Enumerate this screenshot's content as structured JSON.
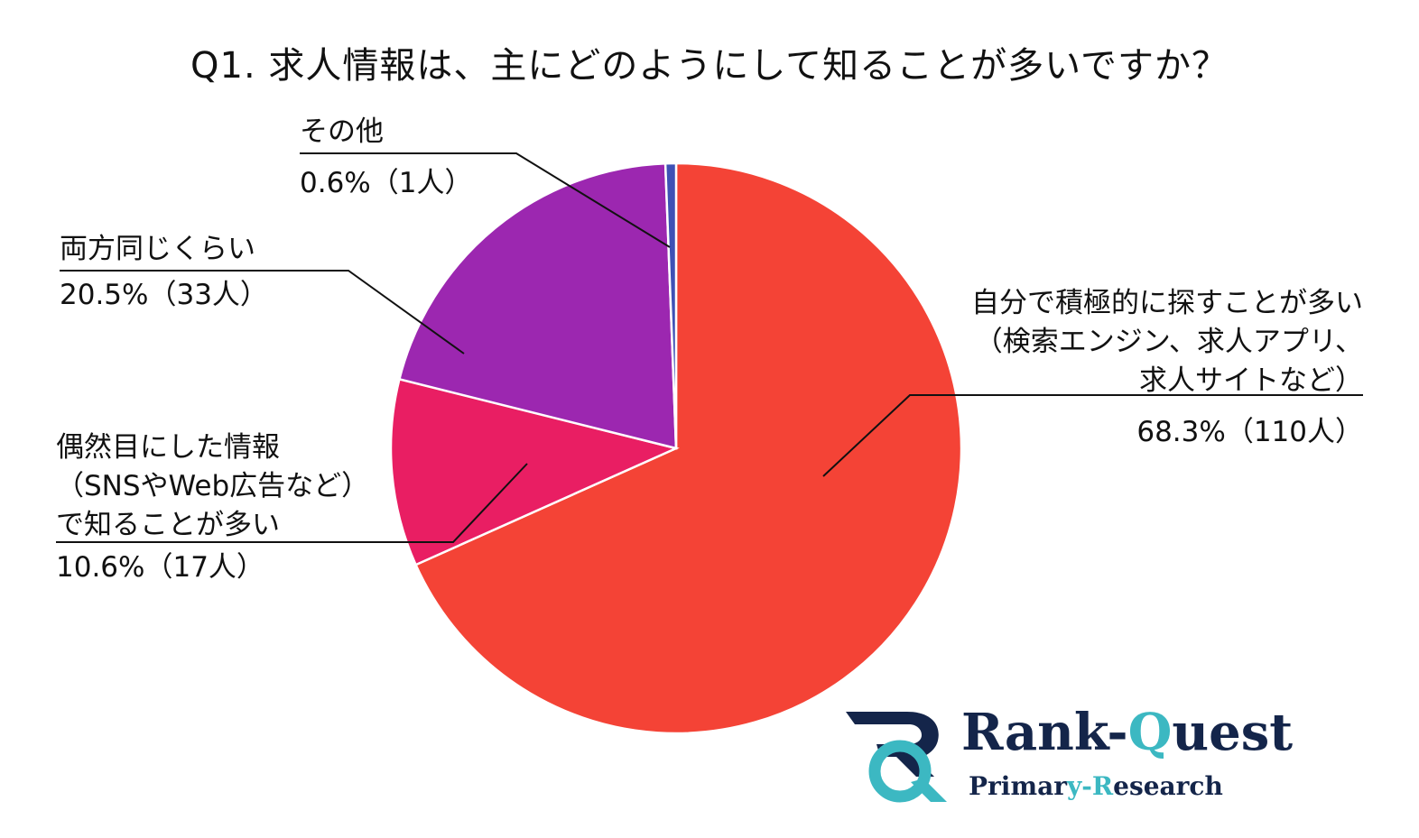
{
  "chart_data": {
    "type": "pie",
    "title": "Q1. 求人情報は、主にどのようにして知ることが多いですか？",
    "slices": [
      {
        "label_lines": [
          "自分で積極的に探すことが多い",
          "（検索エンジン、求人アプリ、",
          "求人サイトなど）"
        ],
        "value": 68.3,
        "count": 110,
        "value_text": "68.3%（110人）",
        "color": "#f44336"
      },
      {
        "label_lines": [
          "偶然目にした情報",
          "（SNSやWeb広告など）",
          "で知ることが多い"
        ],
        "value": 10.6,
        "count": 17,
        "value_text": "10.6%（17人）",
        "color": "#e91e63"
      },
      {
        "label_lines": [
          "両方同じくらい"
        ],
        "value": 20.5,
        "count": 33,
        "value_text": "20.5%（33人）",
        "color": "#9c27b0"
      },
      {
        "label_lines": [
          "その他"
        ],
        "value": 0.6,
        "count": 1,
        "value_text": "0.6%（1人）",
        "color": "#3f51b5"
      }
    ]
  },
  "logo": {
    "title_a": "Ran",
    "title_b": "k-",
    "title_c": "Q",
    "title_d": "uest",
    "sub_a": "Primar",
    "sub_b": "y-",
    "sub_c": "R",
    "sub_d": "esearch",
    "colors": {
      "navy": "#14254a",
      "teal": "#3cb8c2"
    }
  }
}
